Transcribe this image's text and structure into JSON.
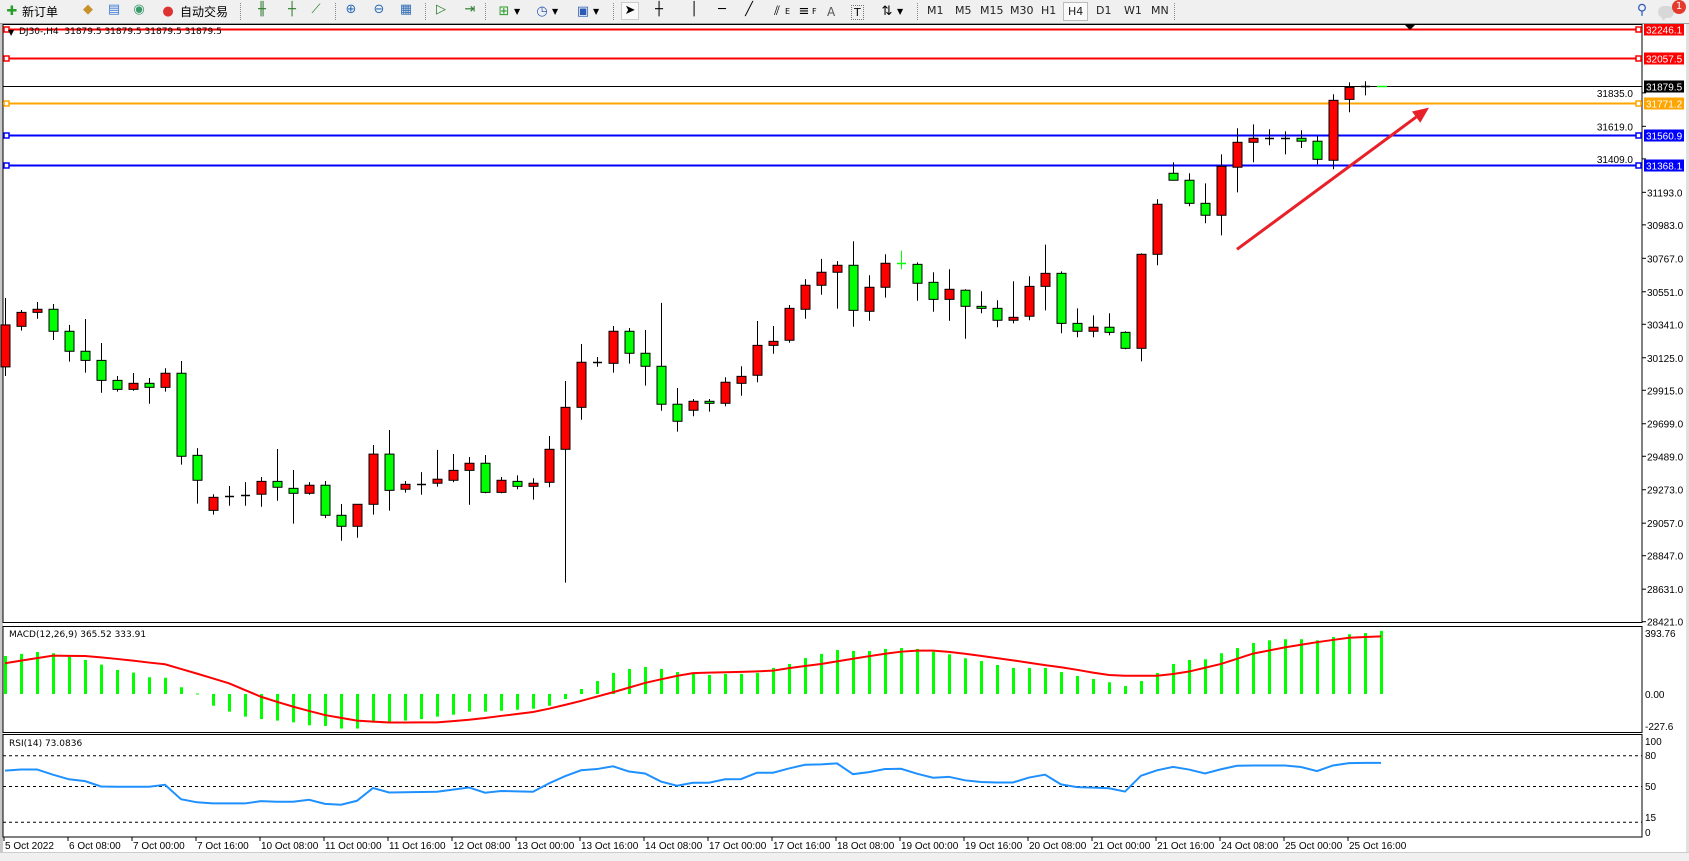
{
  "toolbar": {
    "new_order": "新订单",
    "auto_trading": "自动交易",
    "timeframes": [
      "M1",
      "M5",
      "M15",
      "M30",
      "H1",
      "H4",
      "D1",
      "W1",
      "MN"
    ],
    "selected_timeframe": "H4",
    "draw_labels": {
      "channel": "E",
      "fibo": "F",
      "text": "A",
      "label": "T"
    },
    "notification_count": "1",
    "icons": [
      "new-order-icon",
      "market-watch-icon",
      "data-window-icon",
      "navigator-icon",
      "signals-icon",
      "auto-trading-icon",
      "bar-chart-icon",
      "candlestick-icon",
      "line-chart-icon",
      "zoom-in-icon",
      "zoom-out-icon",
      "tile-windows-icon",
      "auto-scroll-icon",
      "chart-shift-icon",
      "indicators-icon",
      "periods-icon",
      "templates-icon",
      "cursor-icon",
      "crosshair-icon",
      "vertical-line-icon",
      "horizontal-line-icon",
      "trendline-icon",
      "equidistant-channel-icon",
      "fibonacci-icon",
      "text-icon",
      "text-label-icon",
      "arrows-icon",
      "search-icon",
      "chat-icon"
    ]
  },
  "chart": {
    "header": "DJ30-,H4  31879.5 31879.5 31879.5 31879.5",
    "macd_label": "MACD(12,26,9) 365.52 333.91",
    "rsi_label": "RSI(14) 73.0836"
  },
  "colors": {
    "up": "#ff0000",
    "down": "#00ff00",
    "doji": "#000000",
    "macd_hist": "#00ff00",
    "macd_signal": "#ff0000",
    "rsi": "#1e90ff",
    "arrow": "#e8202a"
  },
  "chart_data": {
    "type": "candlestick",
    "symbol": "DJ30-",
    "timeframe": "H4",
    "price_ticks": [
      "31835.0",
      "31619.0",
      "31409.0",
      "31193.0",
      "30983.0",
      "30767.0",
      "30551.0",
      "30341.0",
      "30125.0",
      "29915.0",
      "29699.0",
      "29489.0",
      "29273.0",
      "29057.0",
      "28847.0",
      "28631.0",
      "28421.0"
    ],
    "ylim": [
      28421,
      32246.1
    ],
    "time_labels": [
      "5 Oct 2022",
      "6 Oct 08:00",
      "7 Oct 00:00",
      "7 Oct 16:00",
      "10 Oct 08:00",
      "11 Oct 00:00",
      "11 Oct 16:00",
      "12 Oct 08:00",
      "13 Oct 00:00",
      "13 Oct 16:00",
      "14 Oct 08:00",
      "17 Oct 00:00",
      "17 Oct 16:00",
      "18 Oct 08:00",
      "19 Oct 00:00",
      "19 Oct 16:00",
      "20 Oct 08:00",
      "21 Oct 00:00",
      "21 Oct 16:00",
      "24 Oct 08:00",
      "25 Oct 00:00",
      "25 Oct 16:00"
    ],
    "ohlc_fields": [
      "open",
      "high",
      "low",
      "close"
    ],
    "candles": [
      [
        30066,
        30511,
        30007,
        30337
      ],
      [
        30328,
        30433,
        30300,
        30418
      ],
      [
        30418,
        30485,
        30377,
        30438
      ],
      [
        30438,
        30472,
        30240,
        30296
      ],
      [
        30296,
        30337,
        30100,
        30167
      ],
      [
        30167,
        30375,
        30029,
        30108
      ],
      [
        30108,
        30220,
        29899,
        29979
      ],
      [
        29979,
        30007,
        29906,
        29921
      ],
      [
        29921,
        30027,
        29912,
        29960
      ],
      [
        29960,
        29994,
        29828,
        29934
      ],
      [
        29934,
        30057,
        29906,
        30025
      ],
      [
        30025,
        30104,
        29435,
        29489
      ],
      [
        29495,
        29542,
        29183,
        29334
      ],
      [
        29140,
        29244,
        29112,
        29224
      ],
      [
        29226,
        29297,
        29170,
        29231
      ],
      [
        29235,
        29322,
        29170,
        29240
      ],
      [
        29244,
        29355,
        29163,
        29327
      ],
      [
        29327,
        29536,
        29202,
        29289
      ],
      [
        29282,
        29400,
        29054,
        29250
      ],
      [
        29250,
        29322,
        29241,
        29302
      ],
      [
        29302,
        29329,
        29090,
        29108
      ],
      [
        29108,
        29181,
        28944,
        29037
      ],
      [
        29037,
        29181,
        28963,
        29179
      ],
      [
        29179,
        29562,
        29112,
        29503
      ],
      [
        29503,
        29659,
        29138,
        29269
      ],
      [
        29276,
        29329,
        29254,
        29308
      ],
      [
        29308,
        29387,
        29241,
        29308
      ],
      [
        29315,
        29530,
        29293,
        29341
      ],
      [
        29334,
        29504,
        29321,
        29398
      ],
      [
        29398,
        29484,
        29176,
        29444
      ],
      [
        29444,
        29497,
        29250,
        29256
      ],
      [
        29256,
        29355,
        29250,
        29334
      ],
      [
        29327,
        29366,
        29276,
        29295
      ],
      [
        29295,
        29347,
        29209,
        29315
      ],
      [
        29321,
        29620,
        29289,
        29534
      ],
      [
        29534,
        29975,
        28673,
        29805
      ],
      [
        29805,
        30214,
        29725,
        30096
      ],
      [
        30098,
        30130,
        30067,
        30098
      ],
      [
        30089,
        30330,
        30029,
        30296
      ],
      [
        30296,
        30317,
        30087,
        30154
      ],
      [
        30154,
        30304,
        29945,
        30070
      ],
      [
        30070,
        30479,
        29783,
        29825
      ],
      [
        29825,
        29930,
        29648,
        29715
      ],
      [
        29786,
        29859,
        29747,
        29844
      ],
      [
        29844,
        29859,
        29777,
        29831
      ],
      [
        29831,
        29999,
        29812,
        29967
      ],
      [
        29960,
        30070,
        29880,
        30005
      ],
      [
        30012,
        30362,
        29967,
        30205
      ],
      [
        30205,
        30330,
        30151,
        30231
      ],
      [
        30238,
        30466,
        30222,
        30444
      ],
      [
        30438,
        30633,
        30377,
        30593
      ],
      [
        30593,
        30763,
        30532,
        30677
      ],
      [
        30677,
        30749,
        30442,
        30722
      ],
      [
        30722,
        30877,
        30325,
        30431
      ],
      [
        30425,
        30658,
        30364,
        30580
      ],
      [
        30580,
        30793,
        30513,
        30735
      ],
      [
        30735,
        30816,
        30696,
        30735
      ],
      [
        30728,
        30741,
        30493,
        30606
      ],
      [
        30612,
        30677,
        30422,
        30502
      ],
      [
        30502,
        30696,
        30364,
        30567
      ],
      [
        30561,
        30567,
        30248,
        30457
      ],
      [
        30457,
        30554,
        30412,
        30444
      ],
      [
        30444,
        30496,
        30322,
        30367
      ],
      [
        30367,
        30619,
        30347,
        30386
      ],
      [
        30393,
        30651,
        30367,
        30586
      ],
      [
        30586,
        30855,
        30431,
        30670
      ],
      [
        30670,
        30683,
        30283,
        30347
      ],
      [
        30347,
        30444,
        30257,
        30296
      ],
      [
        30296,
        30399,
        30257,
        30322
      ],
      [
        30322,
        30412,
        30270,
        30289
      ],
      [
        30289,
        30296,
        30180,
        30186
      ],
      [
        30186,
        30799,
        30102,
        30793
      ],
      [
        30793,
        31148,
        30722,
        31116
      ],
      [
        31316,
        31387,
        31271,
        31271
      ],
      [
        31271,
        31316,
        31103,
        31122
      ],
      [
        31122,
        31251,
        30993,
        31045
      ],
      [
        31045,
        31438,
        30915,
        31361
      ],
      [
        31355,
        31607,
        31193,
        31516
      ],
      [
        31516,
        31632,
        31387,
        31542
      ],
      [
        31542,
        31600,
        31497,
        31542
      ],
      [
        31546,
        31587,
        31438,
        31546
      ],
      [
        31542,
        31594,
        31479,
        31523
      ],
      [
        31523,
        31555,
        31374,
        31406
      ],
      [
        31400,
        31826,
        31342,
        31787
      ],
      [
        31793,
        31903,
        31710,
        31871
      ],
      [
        31879.5,
        31910,
        31819,
        31879.5
      ],
      [
        31879.5,
        31879.5,
        31879.5,
        31879.5
      ]
    ],
    "green_doji_indices": [
      56,
      86
    ],
    "levels": [
      {
        "price": "32246.1",
        "color": "#ff0000"
      },
      {
        "price": "32057.5",
        "color": "#ff0000"
      },
      {
        "price": "31879.5",
        "color": "#000000",
        "current": true
      },
      {
        "price": "31771.2",
        "color": "#ffa500"
      },
      {
        "price": "31560.9",
        "color": "#0000ff"
      },
      {
        "price": "31368.1",
        "color": "#0000ff"
      }
    ],
    "annotation": {
      "type": "arrow",
      "color": "#e8202a",
      "from_bar": 77,
      "from_price": 30825,
      "to_bar": 89,
      "to_price": 31740
    },
    "macd": {
      "params": "12,26,9",
      "value": 365.52,
      "signal_value": 333.91,
      "ylim": [
        -227.6,
        393.76
      ],
      "ticks": [
        "393.76",
        "0.00",
        "-227.6"
      ],
      "histogram": [
        220,
        232,
        243,
        236,
        216,
        197,
        170,
        139,
        124,
        97,
        94,
        39,
        3,
        -68,
        -102,
        -131,
        -145,
        -154,
        -164,
        -181,
        -185,
        -200,
        -200,
        -166,
        -160,
        -154,
        -145,
        -131,
        -120,
        -102,
        -102,
        -97,
        -91,
        -85,
        -68,
        -29,
        29,
        75,
        122,
        145,
        156,
        145,
        127,
        116,
        110,
        116,
        116,
        122,
        151,
        174,
        208,
        232,
        255,
        249,
        249,
        261,
        266,
        261,
        245,
        230,
        207,
        191,
        168,
        151,
        151,
        151,
        127,
        104,
        87,
        68,
        46,
        75,
        122,
        174,
        197,
        201,
        236,
        266,
        295,
        311,
        317,
        317,
        311,
        330,
        346,
        353,
        365.52
      ],
      "signal": [
        178,
        193,
        208,
        222,
        221,
        220,
        212,
        203,
        193,
        182,
        172,
        145,
        118,
        90,
        62,
        23,
        -16,
        -45,
        -73,
        -98,
        -122,
        -138,
        -154,
        -160,
        -165,
        -165,
        -164,
        -164,
        -157,
        -149,
        -139,
        -127,
        -116,
        -104,
        -85,
        -63,
        -40,
        -15,
        10,
        37,
        64,
        85,
        105,
        121,
        124,
        126,
        128,
        131,
        135,
        150,
        162,
        174,
        189,
        204,
        219,
        233,
        245,
        251,
        251,
        244,
        233,
        221,
        208,
        195,
        181,
        167,
        155,
        140,
        124,
        110,
        106,
        106,
        106,
        116,
        130,
        152,
        174,
        204,
        234,
        252,
        270,
        285,
        300,
        313,
        326,
        330,
        333.91
      ]
    },
    "rsi": {
      "period": 14,
      "value": 73.0836,
      "ylim": [
        0,
        100
      ],
      "ticks": [
        "100",
        "80",
        "50",
        "15",
        "0"
      ],
      "levels": [
        80,
        50,
        15
      ],
      "values": [
        65.5,
        66.6,
        66.6,
        61.5,
        57,
        55.2,
        50,
        49.7,
        49.7,
        49.7,
        51.6,
        37.5,
        34.5,
        33.4,
        33.4,
        33.4,
        35.7,
        35,
        35,
        37,
        33,
        32.1,
        36,
        48.5,
        44.1,
        44.3,
        44.6,
        44.8,
        46.9,
        49,
        43.9,
        45.6,
        45.2,
        44.8,
        53,
        60,
        65.8,
        67,
        69.7,
        64.6,
        62.7,
        54.8,
        50.7,
        53.6,
        53.6,
        57,
        57.2,
        63.4,
        63.4,
        67.6,
        71.2,
        71.6,
        72.5,
        62,
        64,
        67,
        67.3,
        62.5,
        58.5,
        59.4,
        56,
        54.4,
        53.9,
        53.9,
        58.7,
        61.5,
        52,
        49.3,
        48.9,
        48.2,
        45,
        60.5,
        65.8,
        69.1,
        66.5,
        62.7,
        66.8,
        70.2,
        70.5,
        70.5,
        70.5,
        69,
        65,
        70.5,
        72.8,
        73.1,
        73.0836
      ]
    }
  }
}
